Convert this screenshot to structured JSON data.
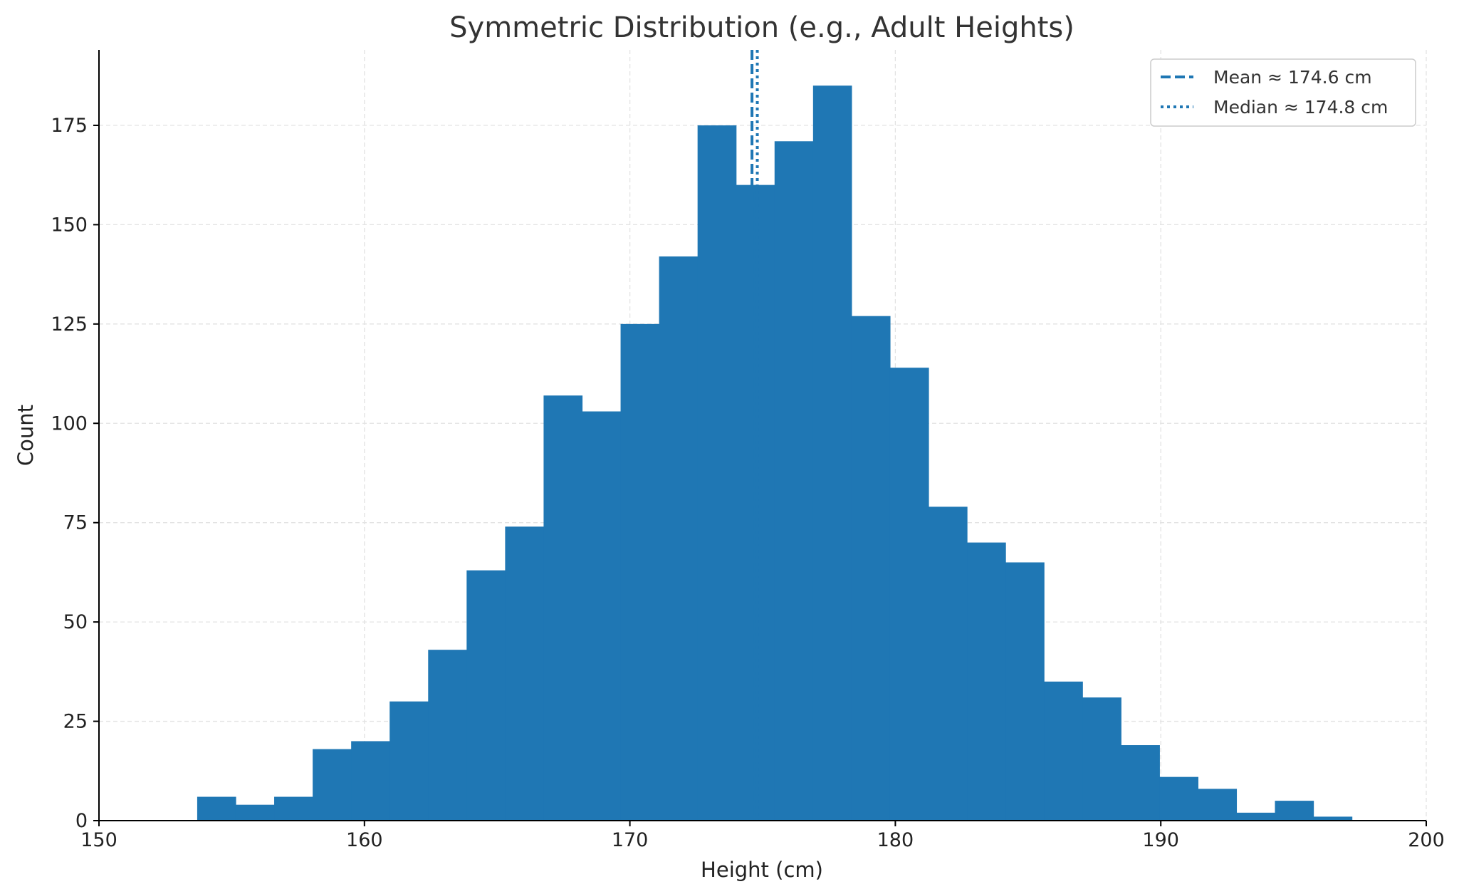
{
  "chart_data": {
    "type": "bar",
    "subtype": "histogram",
    "title": "Symmetric Distribution (e.g., Adult Heights)",
    "xlabel": "Height (cm)",
    "ylabel": "Count",
    "xlim": [
      150,
      200
    ],
    "ylim": [
      0,
      194
    ],
    "xticks": [
      150,
      160,
      170,
      180,
      190,
      200
    ],
    "yticks": [
      0,
      25,
      50,
      75,
      100,
      125,
      150,
      175
    ],
    "grid": true,
    "bar_color": "#1f77b4",
    "bins": {
      "start": 153.7,
      "end": 197.2,
      "counts": [
        6,
        4,
        6,
        18,
        20,
        30,
        43,
        63,
        74,
        107,
        103,
        125,
        142,
        175,
        160,
        171,
        185,
        127,
        114,
        79,
        70,
        65,
        35,
        31,
        19,
        11,
        8,
        2,
        5,
        1
      ]
    },
    "reference_lines": [
      {
        "name": "Mean ≈ 174.6 cm",
        "x": 174.6,
        "style": "dashed",
        "color": "#1f77b4"
      },
      {
        "name": "Median ≈ 174.8 cm",
        "x": 174.8,
        "style": "dotted",
        "color": "#1f77b4"
      }
    ],
    "legend": {
      "position": "top-right"
    }
  }
}
